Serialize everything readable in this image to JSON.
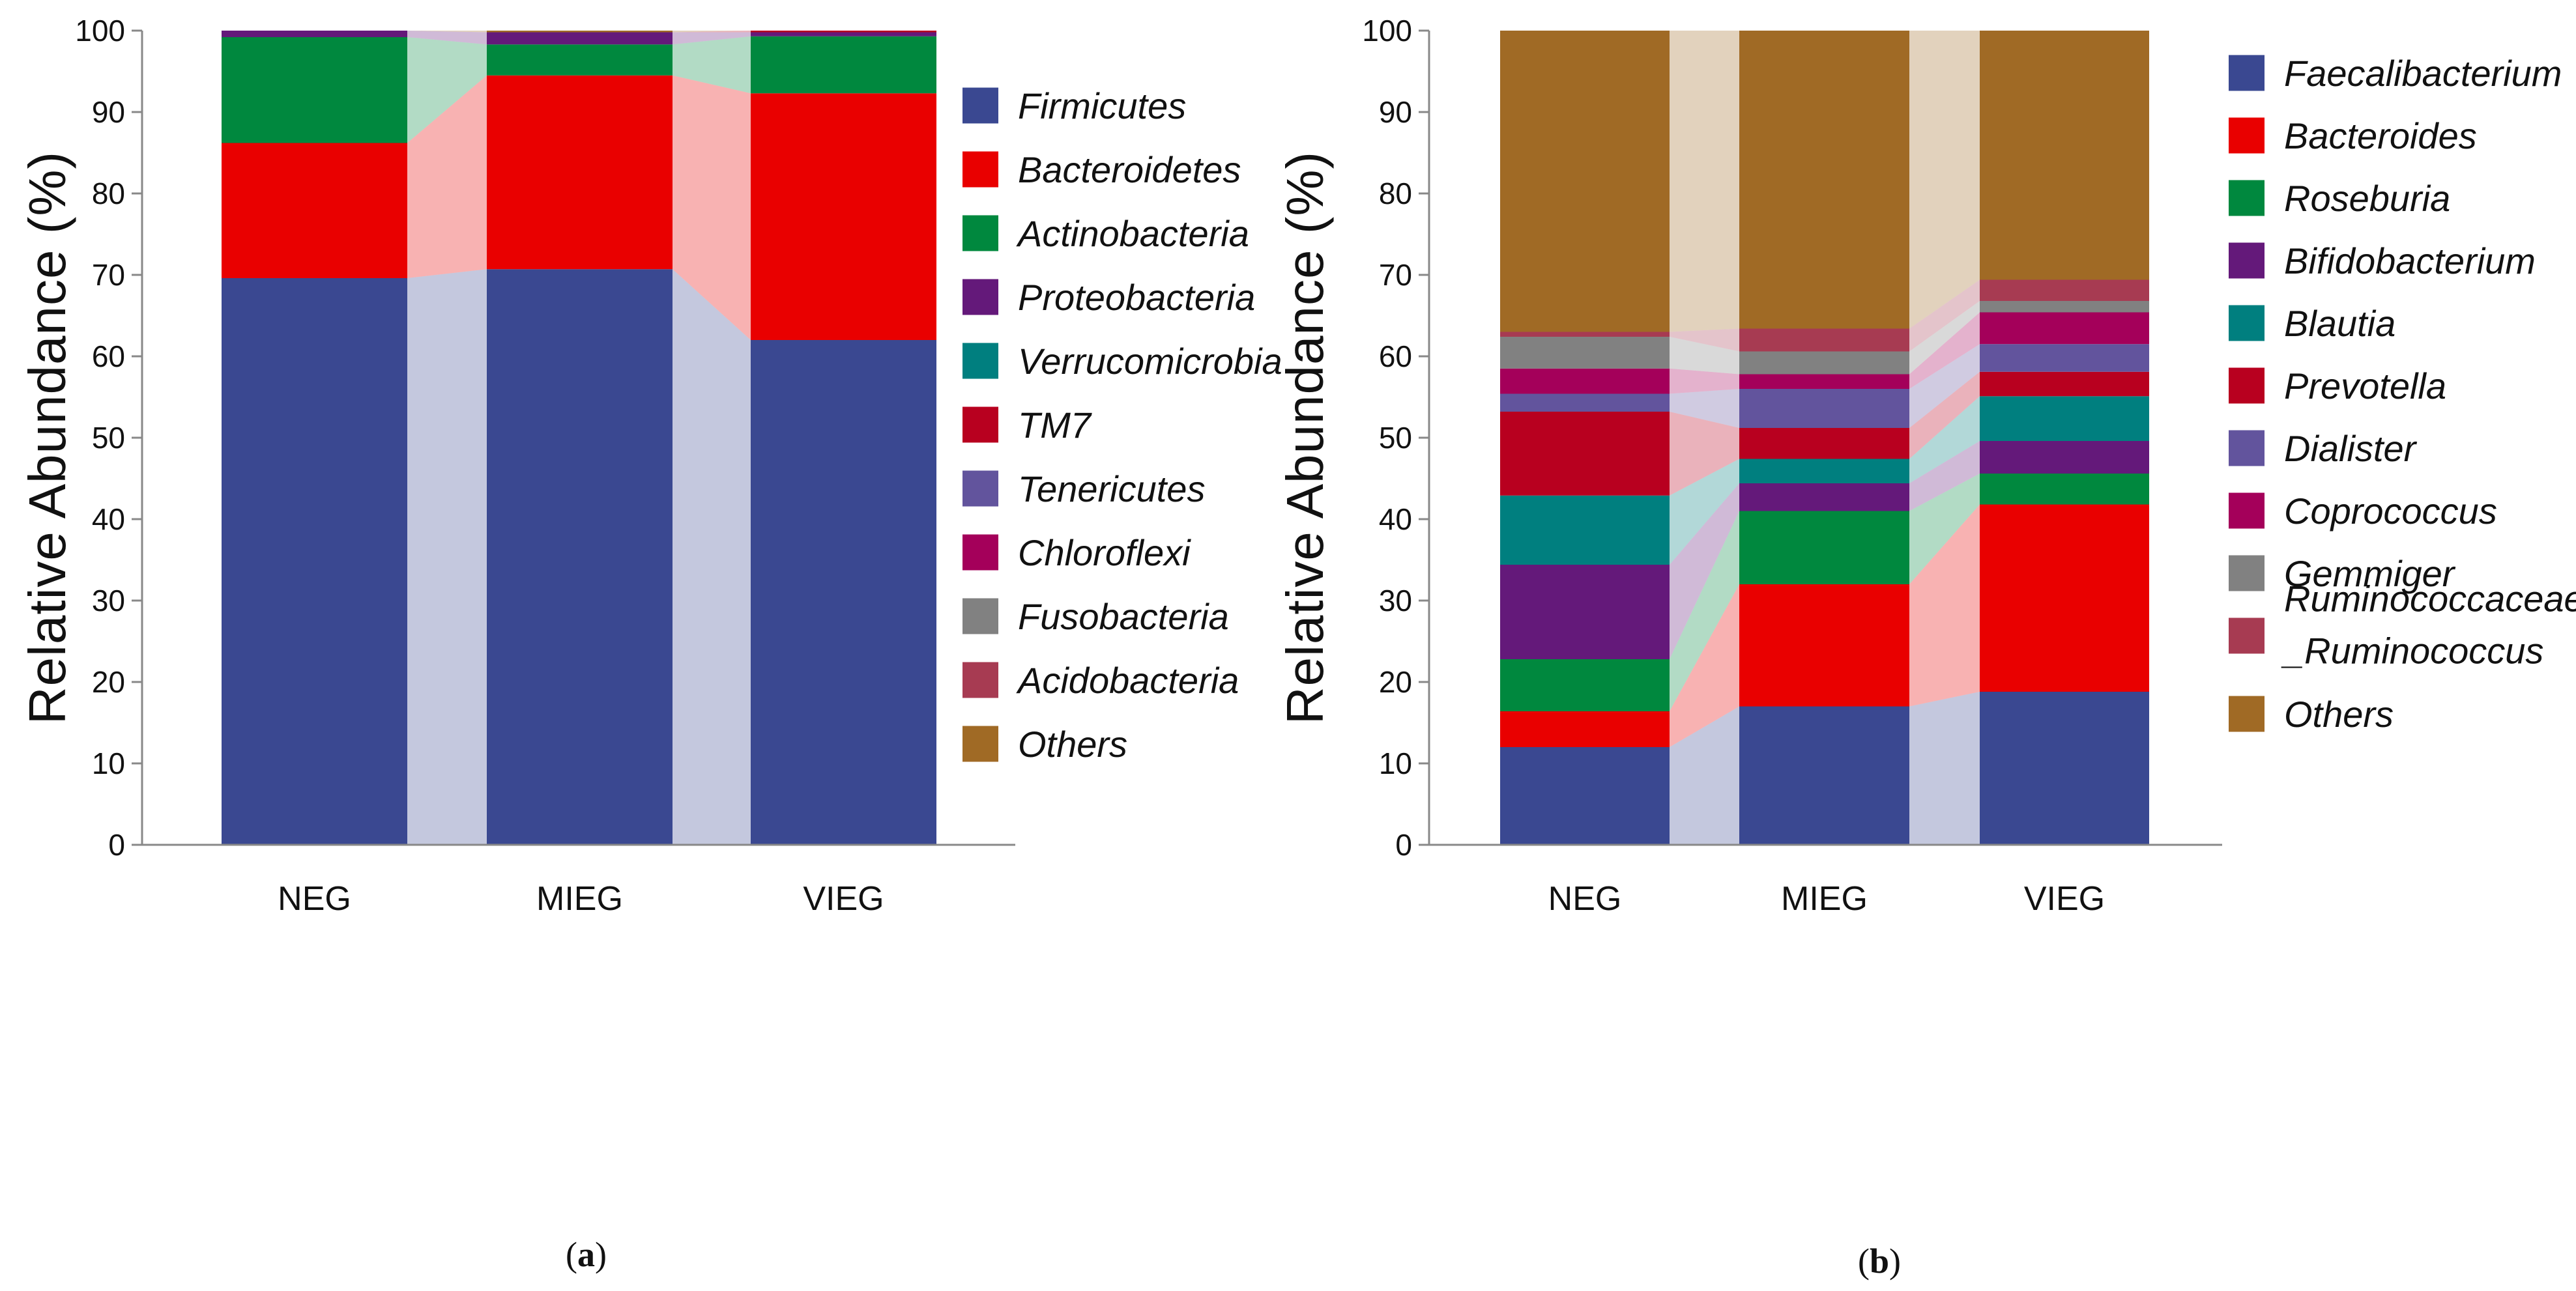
{
  "chart_data": [
    {
      "type": "stacked-bar",
      "panel_label": "a",
      "ylabel": "Relative Abundance (%)",
      "ylim": [
        0,
        100
      ],
      "yticks": [
        0,
        10,
        20,
        30,
        40,
        50,
        60,
        70,
        80,
        90,
        100
      ],
      "categories": [
        "NEG",
        "MIEG",
        "VIEG"
      ],
      "series": [
        {
          "name": "Firmicutes",
          "color": "#3a4891",
          "values": [
            69.6,
            70.7,
            62.0
          ]
        },
        {
          "name": "Bacteroidetes",
          "color": "#e90000",
          "values": [
            16.6,
            23.8,
            30.3
          ]
        },
        {
          "name": "Actinobacteria",
          "color": "#00883e",
          "values": [
            13.0,
            3.8,
            7.0
          ]
        },
        {
          "name": "Proteobacteria",
          "color": "#64197a",
          "values": [
            0.8,
            1.5,
            0.5
          ]
        },
        {
          "name": "Verrucomicrobia",
          "color": "#007f7f",
          "values": [
            0,
            0,
            0
          ]
        },
        {
          "name": "TM7",
          "color": "#b8001f",
          "values": [
            0,
            0,
            0.2
          ]
        },
        {
          "name": "Tenericutes",
          "color": "#62549d",
          "values": [
            0,
            0,
            0
          ]
        },
        {
          "name": "Chloroflexi",
          "color": "#a4005a",
          "values": [
            0,
            0,
            0
          ]
        },
        {
          "name": "Fusobacteria",
          "color": "#818181",
          "values": [
            0,
            0,
            0
          ]
        },
        {
          "name": "Acidobacteria",
          "color": "#a73b52",
          "values": [
            0,
            0,
            0
          ]
        },
        {
          "name": "Others",
          "color": "#a06a25",
          "values": [
            0,
            0.2,
            0
          ]
        }
      ]
    },
    {
      "type": "stacked-bar",
      "panel_label": "b",
      "ylabel": "Relative Abundance (%)",
      "ylim": [
        0,
        100
      ],
      "yticks": [
        0,
        10,
        20,
        30,
        40,
        50,
        60,
        70,
        80,
        90,
        100
      ],
      "categories": [
        "NEG",
        "MIEG",
        "VIEG"
      ],
      "series": [
        {
          "name": "Faecalibacterium",
          "color": "#3a4891",
          "values": [
            12.0,
            17.0,
            18.8
          ]
        },
        {
          "name": "Bacteroides",
          "color": "#e90000",
          "values": [
            4.4,
            15.0,
            23.0
          ]
        },
        {
          "name": "Roseburia",
          "color": "#00883e",
          "values": [
            6.4,
            9.0,
            3.8
          ]
        },
        {
          "name": "Bifidobacterium",
          "color": "#64197a",
          "values": [
            11.6,
            3.4,
            4.0
          ]
        },
        {
          "name": "Blautia",
          "color": "#007f7f",
          "values": [
            8.5,
            3.0,
            5.5
          ]
        },
        {
          "name": "Prevotella",
          "color": "#b8001f",
          "values": [
            10.3,
            3.8,
            3.0
          ]
        },
        {
          "name": "Dialister",
          "color": "#62549d",
          "values": [
            2.2,
            4.8,
            3.4
          ]
        },
        {
          "name": "Coprococcus",
          "color": "#a4005a",
          "values": [
            3.1,
            1.8,
            3.9
          ]
        },
        {
          "name": "Gemmiger",
          "color": "#818181",
          "values": [
            3.9,
            2.8,
            1.4
          ]
        },
        {
          "name": "Ruminococcaceae_Ruminococcus",
          "color": "#a73b52",
          "values": [
            0.6,
            2.8,
            2.6
          ]
        },
        {
          "name": "Others",
          "color": "#a06a25",
          "values": [
            37.0,
            36.6,
            30.6
          ]
        }
      ]
    }
  ],
  "legend_a": [
    "Firmicutes",
    "Bacteroidetes",
    "Actinobacteria",
    "Proteobacteria",
    "Verrucomicrobia",
    "TM7",
    "Tenericutes",
    "Chloroflexi",
    "Fusobacteria",
    "Acidobacteria",
    "Others"
  ],
  "legend_b": [
    "Faecalibacterium",
    "Bacteroides",
    "Roseburia",
    "Bifidobacterium",
    "Blautia",
    "Prevotella",
    "Dialister",
    "Coprococcus",
    "Gemmiger",
    "Ruminococcaceae",
    "_Ruminococcus",
    "Others"
  ],
  "labels": {
    "a": "a",
    "b": "b",
    "open": "(",
    "close": ")"
  }
}
